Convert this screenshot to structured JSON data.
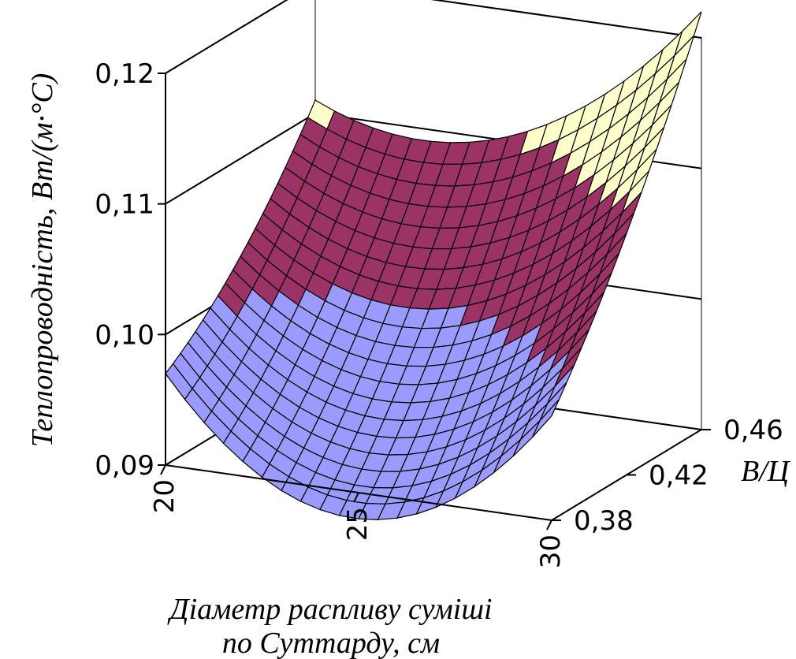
{
  "chart_data": {
    "type": "surface3d",
    "title": "",
    "zlabel": "Теплопровoдність, Вт/(м·°С)",
    "xlabel_lines": [
      "Діаметр распливу суміші",
      "по Суттарду, см"
    ],
    "ylabel": "В/Ц",
    "x_ticks": [
      "20",
      "25",
      "30"
    ],
    "y_ticks": [
      "0,38",
      "0,42",
      "0,46"
    ],
    "z_ticks": [
      "0,09",
      "0,10",
      "0,11",
      "0,12"
    ],
    "x_range": [
      20,
      30
    ],
    "y_range": [
      0.38,
      0.46
    ],
    "z_range": [
      0.09,
      0.12
    ],
    "grid_size": 21,
    "surface": {
      "model": "quadratic",
      "z_at_x20_y038": 0.097,
      "z_at_x30_y038": 0.098,
      "z_at_x20_y046": 0.111,
      "z_at_x30_y046": 0.122,
      "min_z": 0.0952,
      "min_at": {
        "x": 24.5,
        "y": 0.385
      }
    },
    "color_bands": [
      {
        "range": "0,09-0,10",
        "color": "#9b9bff"
      },
      {
        "range": "0,10-0,11",
        "color": "#9b3366"
      },
      {
        "range": "0,11-0,12",
        "color": "#ffffcc"
      }
    ],
    "grid": true,
    "colors": {
      "line": "#000000",
      "panel_line": "#808080",
      "mesh_line": "#000000"
    }
  }
}
